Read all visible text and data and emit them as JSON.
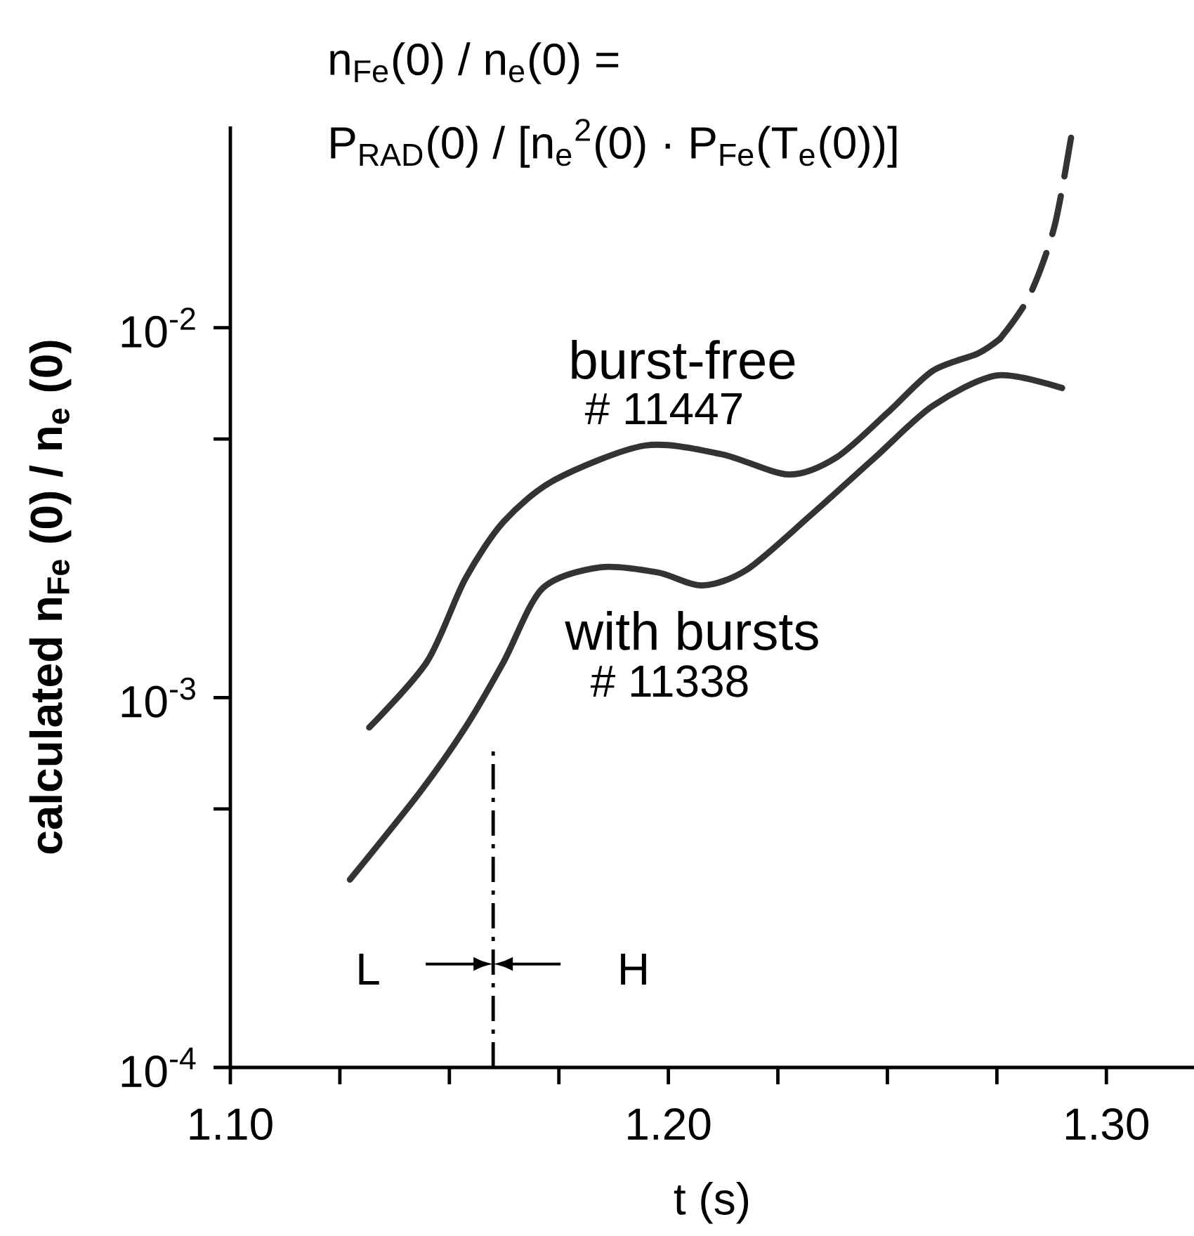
{
  "chart_data": {
    "type": "line",
    "title": "n$_{Fe}$(0) / n$_{e}$(0)  =",
    "subtitle": "P$_{RAD}$(0) / [n$_{e}$$^{2}$(0) · P$_{Fe}$(T$_{e}$(0))]",
    "xlabel": "t (s)",
    "ylabel": "calculated  n$_{Fe}$ (0) / n$_{e}$ (0)",
    "log": "y",
    "grid": false,
    "xlim": [
      1.1,
      1.32
    ],
    "ylim": [
      0.0001,
      0.035
    ],
    "xticks": [
      {
        "value": 1.1,
        "label": "1.10"
      },
      {
        "value": 1.125,
        "label": null
      },
      {
        "value": 1.15,
        "label": null
      },
      {
        "value": 1.175,
        "label": null
      },
      {
        "value": 1.2,
        "label": "1.20"
      },
      {
        "value": 1.225,
        "label": null
      },
      {
        "value": 1.25,
        "label": null
      },
      {
        "value": 1.275,
        "label": null
      },
      {
        "value": 1.3,
        "label": "1.30"
      }
    ],
    "yticks": [
      {
        "value": 0.0001,
        "label": "10$^{-4}$"
      },
      {
        "value": 0.0005,
        "label": null
      },
      {
        "value": 0.001,
        "label": "10$^{-3}$"
      },
      {
        "value": 0.005,
        "label": null
      },
      {
        "value": 0.01,
        "label": "10$^{-2}$"
      }
    ],
    "series": [
      {
        "name": "burst-free",
        "color": "#333333",
        "line_style": "solid",
        "x": [
          1.1317,
          1.1449,
          1.1536,
          1.1624,
          1.1741,
          1.1946,
          1.2121,
          1.2274,
          1.2384,
          1.2501,
          1.2603,
          1.2706,
          1.2757
        ],
        "values": [
          0.00083,
          0.00125,
          0.00209,
          0.00299,
          0.00388,
          0.0048,
          0.00455,
          0.00401,
          0.00446,
          0.0059,
          0.00764,
          0.00851,
          0.00933
        ]
      },
      {
        "color": "#333333",
        "line_style": "dashed",
        "x": [
          1.2757,
          1.2823,
          1.2881,
          1.2922
        ],
        "values": [
          0.00933,
          0.0121,
          0.0187,
          0.0341
        ]
      },
      {
        "name": "with bursts",
        "color": "#333333",
        "line_style": "solid",
        "x": [
          1.1273,
          1.1434,
          1.1536,
          1.1624,
          1.1712,
          1.1844,
          1.1975,
          1.2077,
          1.218,
          1.2326,
          1.2472,
          1.2603,
          1.275,
          1.2899
        ],
        "values": [
          0.000322,
          0.000557,
          0.000828,
          0.00125,
          0.00197,
          0.00225,
          0.00218,
          0.00201,
          0.00222,
          0.00312,
          0.00446,
          0.00614,
          0.00743,
          0.00687
        ]
      }
    ],
    "ref_lines": [
      {
        "axis": "x",
        "value": 1.16,
        "line_style": "dashdot"
      }
    ],
    "annotations": [
      "# 11447",
      "# 11338",
      "L",
      "H"
    ]
  }
}
